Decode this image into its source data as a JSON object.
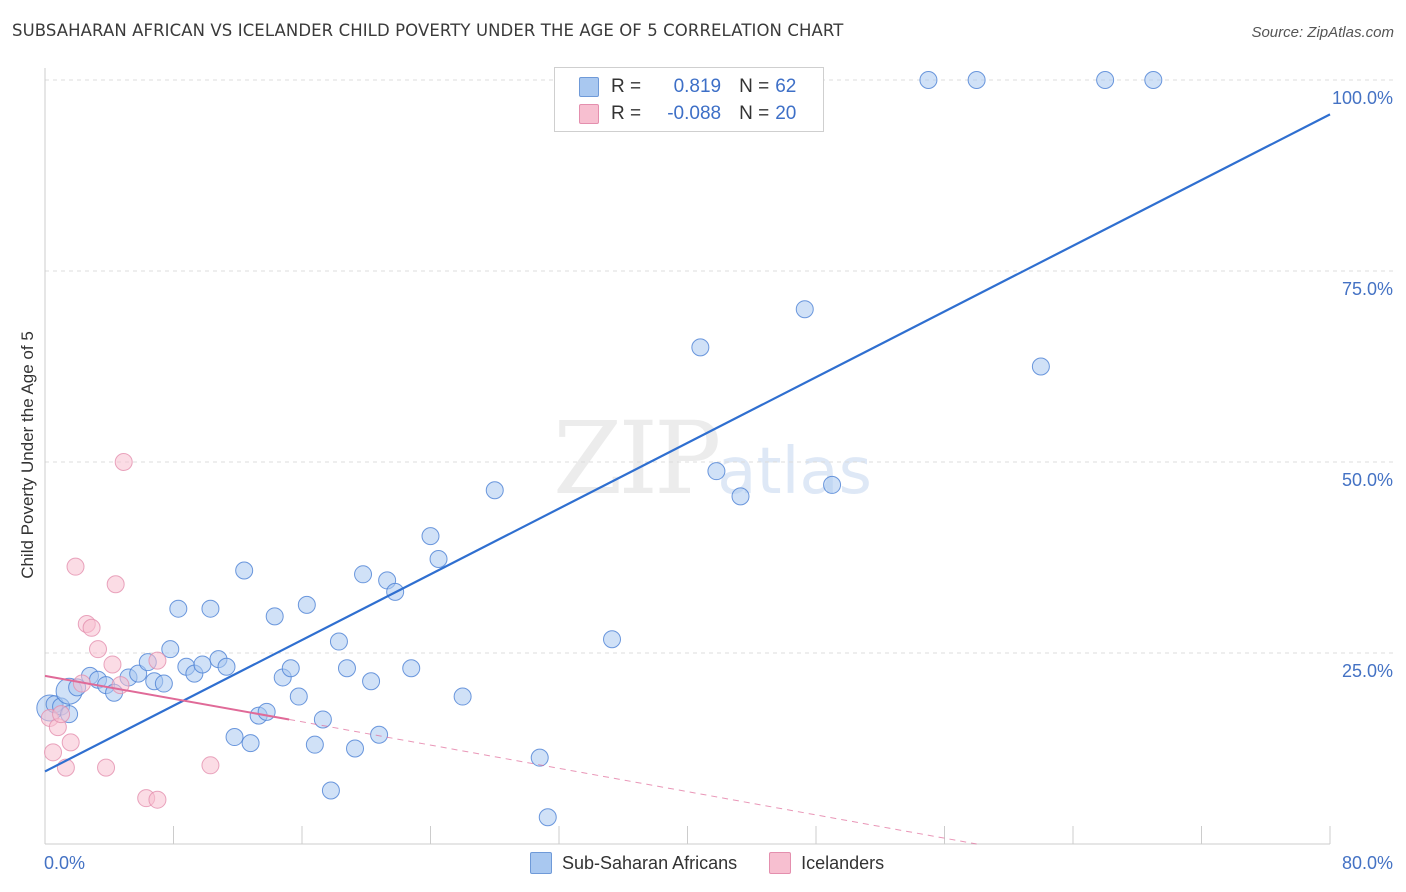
{
  "title": "SUBSAHARAN AFRICAN VS ICELANDER CHILD POVERTY UNDER THE AGE OF 5 CORRELATION CHART",
  "source": "Source: ZipAtlas.com",
  "watermark": {
    "zip": "ZIP",
    "atlas": "atlas"
  },
  "legend": {
    "rows": [
      {
        "r_label": "R =",
        "r_value": "0.819",
        "n_label": "N =",
        "n_value": "62",
        "color": "#a9c8f0"
      },
      {
        "r_label": "R =",
        "r_value": "-0.088",
        "n_label": "N =",
        "n_value": "20",
        "color": "#f7bfd0"
      }
    ]
  },
  "bottom_legend": [
    {
      "label": "Sub-Saharan Africans",
      "color": "#a9c8f0"
    },
    {
      "label": "Icelanders",
      "color": "#f7bfd0"
    }
  ],
  "chart_data": {
    "type": "scatter",
    "title": "SUBSAHARAN AFRICAN VS ICELANDER CHILD POVERTY UNDER THE AGE OF 5 CORRELATION CHART",
    "xlabel": "",
    "ylabel": "Child Poverty Under the Age of 5",
    "xlim": [
      0,
      80
    ],
    "ylim": [
      0,
      100
    ],
    "x_tick_labels": [
      "0.0%",
      "80.0%"
    ],
    "y_ticks": [
      25,
      50,
      75,
      100
    ],
    "y_tick_labels": [
      "25.0%",
      "50.0%",
      "75.0%",
      "100.0%"
    ],
    "grid": true,
    "series": [
      {
        "name": "Sub-Saharan Africans",
        "color": "#4a7fd4",
        "fill": "#a9c8f0",
        "points": [
          [
            0.3,
            17.8
          ],
          [
            0.6,
            18.3
          ],
          [
            1.0,
            18.0
          ],
          [
            1.5,
            20.0
          ],
          [
            2.0,
            20.5
          ],
          [
            2.8,
            22.0
          ],
          [
            3.3,
            21.5
          ],
          [
            3.8,
            20.8
          ],
          [
            4.3,
            19.8
          ],
          [
            5.2,
            21.8
          ],
          [
            5.8,
            22.3
          ],
          [
            6.4,
            23.8
          ],
          [
            6.8,
            21.3
          ],
          [
            7.4,
            21.0
          ],
          [
            7.8,
            25.5
          ],
          [
            8.3,
            30.8
          ],
          [
            8.8,
            23.2
          ],
          [
            9.3,
            22.3
          ],
          [
            9.8,
            23.5
          ],
          [
            10.3,
            30.8
          ],
          [
            10.8,
            24.2
          ],
          [
            11.3,
            23.2
          ],
          [
            11.8,
            14.0
          ],
          [
            12.4,
            35.8
          ],
          [
            12.8,
            13.2
          ],
          [
            13.3,
            16.8
          ],
          [
            13.8,
            17.3
          ],
          [
            14.3,
            29.8
          ],
          [
            14.8,
            21.8
          ],
          [
            15.3,
            23.0
          ],
          [
            15.8,
            19.3
          ],
          [
            16.3,
            31.3
          ],
          [
            16.8,
            13.0
          ],
          [
            17.3,
            16.3
          ],
          [
            17.8,
            7.0
          ],
          [
            18.3,
            26.5
          ],
          [
            18.8,
            23.0
          ],
          [
            19.3,
            12.5
          ],
          [
            19.8,
            35.3
          ],
          [
            20.3,
            21.3
          ],
          [
            20.8,
            14.3
          ],
          [
            21.3,
            34.5
          ],
          [
            21.8,
            33.0
          ],
          [
            22.8,
            23.0
          ],
          [
            24.0,
            40.3
          ],
          [
            24.5,
            37.3
          ],
          [
            26.0,
            19.3
          ],
          [
            28.0,
            46.3
          ],
          [
            30.8,
            11.3
          ],
          [
            31.3,
            3.5
          ],
          [
            35.3,
            26.8
          ],
          [
            40.8,
            65.0
          ],
          [
            41.8,
            48.8
          ],
          [
            43.3,
            45.5
          ],
          [
            47.3,
            70.0
          ],
          [
            49.0,
            47.0
          ],
          [
            55.0,
            100.0
          ],
          [
            58.0,
            100.0
          ],
          [
            62.0,
            62.5
          ],
          [
            66.0,
            100.0
          ],
          [
            69.0,
            100.0
          ],
          [
            1.5,
            17.0
          ]
        ]
      },
      {
        "name": "Icelanders",
        "color": "#e48fae",
        "fill": "#f7bfd0",
        "points": [
          [
            0.3,
            16.5
          ],
          [
            0.5,
            12.0
          ],
          [
            0.8,
            15.3
          ],
          [
            1.0,
            17.0
          ],
          [
            1.3,
            10.0
          ],
          [
            1.6,
            13.3
          ],
          [
            1.9,
            36.3
          ],
          [
            2.3,
            21.0
          ],
          [
            2.6,
            28.8
          ],
          [
            2.9,
            28.3
          ],
          [
            3.3,
            25.5
          ],
          [
            3.8,
            10.0
          ],
          [
            4.2,
            23.5
          ],
          [
            4.4,
            34.0
          ],
          [
            4.7,
            20.8
          ],
          [
            4.9,
            50.0
          ],
          [
            6.3,
            6.0
          ],
          [
            7.0,
            5.8
          ],
          [
            7.0,
            24.0
          ],
          [
            10.3,
            10.3
          ]
        ]
      }
    ],
    "trendlines": [
      {
        "series": "Sub-Saharan Africans",
        "x": [
          0,
          80
        ],
        "y": [
          9.5,
          95.5
        ]
      },
      {
        "series": "Icelanders",
        "x": [
          0,
          15.2
        ],
        "y": [
          22.0,
          16.3
        ]
      },
      {
        "series": "Icelanders",
        "style": "dashed",
        "x": [
          15.2,
          58.0
        ],
        "y": [
          16.3,
          0.0
        ]
      }
    ]
  }
}
